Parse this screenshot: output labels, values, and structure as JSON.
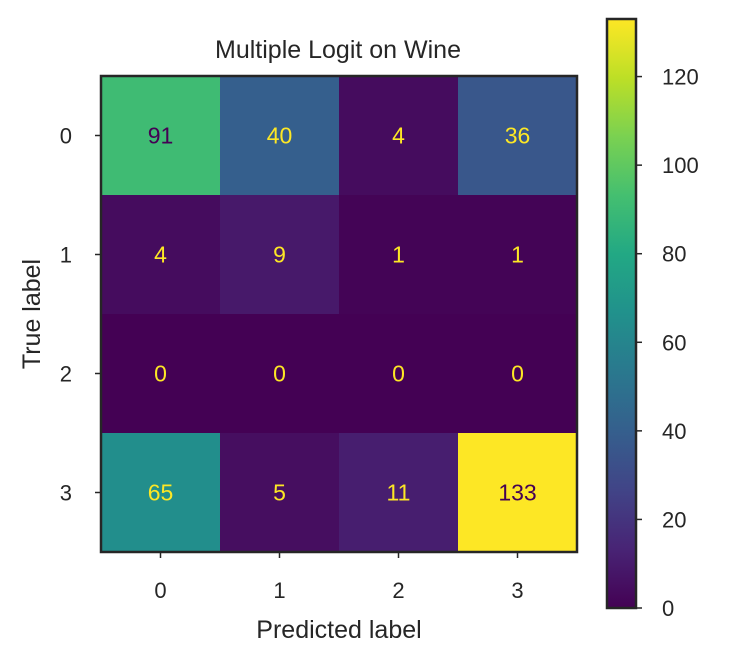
{
  "chart_data": {
    "type": "heatmap",
    "title": "Multiple Logit on Wine",
    "xlabel": "Predicted label",
    "ylabel": "True label",
    "x_categories": [
      "0",
      "1",
      "2",
      "3"
    ],
    "y_categories": [
      "0",
      "1",
      "2",
      "3"
    ],
    "values": [
      [
        91,
        40,
        4,
        36
      ],
      [
        4,
        9,
        1,
        1
      ],
      [
        0,
        0,
        0,
        0
      ],
      [
        65,
        5,
        11,
        133
      ]
    ],
    "colormap": "viridis",
    "colorbar": {
      "range": [
        0,
        133
      ],
      "ticks": [
        0,
        20,
        40,
        60,
        80,
        100,
        120
      ]
    },
    "text_colors": {
      "on_dark": "#fde725",
      "on_light": "#440154"
    },
    "grid": false
  }
}
